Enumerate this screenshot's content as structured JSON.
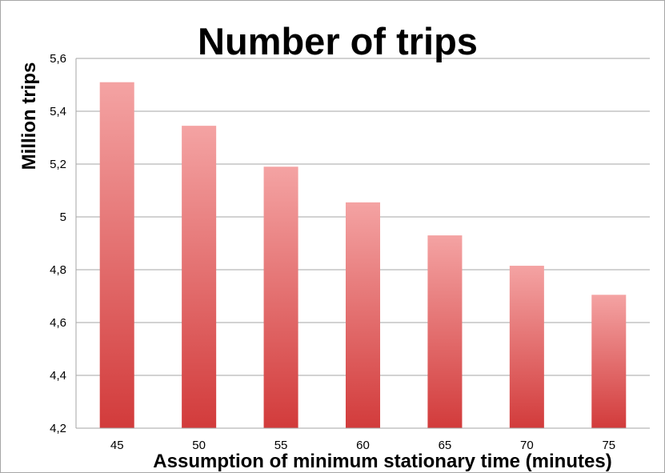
{
  "chart_data": {
    "type": "bar",
    "title": "Number of trips",
    "xlabel": "Assumption of minimum stationary time (minutes)",
    "ylabel": "Million trips",
    "categories": [
      "45",
      "50",
      "55",
      "60",
      "65",
      "70",
      "75"
    ],
    "values": [
      5.51,
      5.345,
      5.19,
      5.055,
      4.93,
      4.815,
      4.705
    ],
    "ylim": [
      4.2,
      5.6
    ],
    "yticks": [
      4.2,
      4.4,
      4.6,
      4.8,
      5.0,
      5.2,
      5.4,
      5.6
    ],
    "ytick_labels": [
      "4,2",
      "4,4",
      "4,6",
      "4,8",
      "5",
      "5,2",
      "5,4",
      "5,6"
    ],
    "grid": true,
    "legend": "none",
    "colors": {
      "bar_top": "#f4a3a3",
      "bar_bottom": "#d23b3b",
      "grid": "#a6a6a6",
      "axis": "#a6a6a6"
    }
  }
}
